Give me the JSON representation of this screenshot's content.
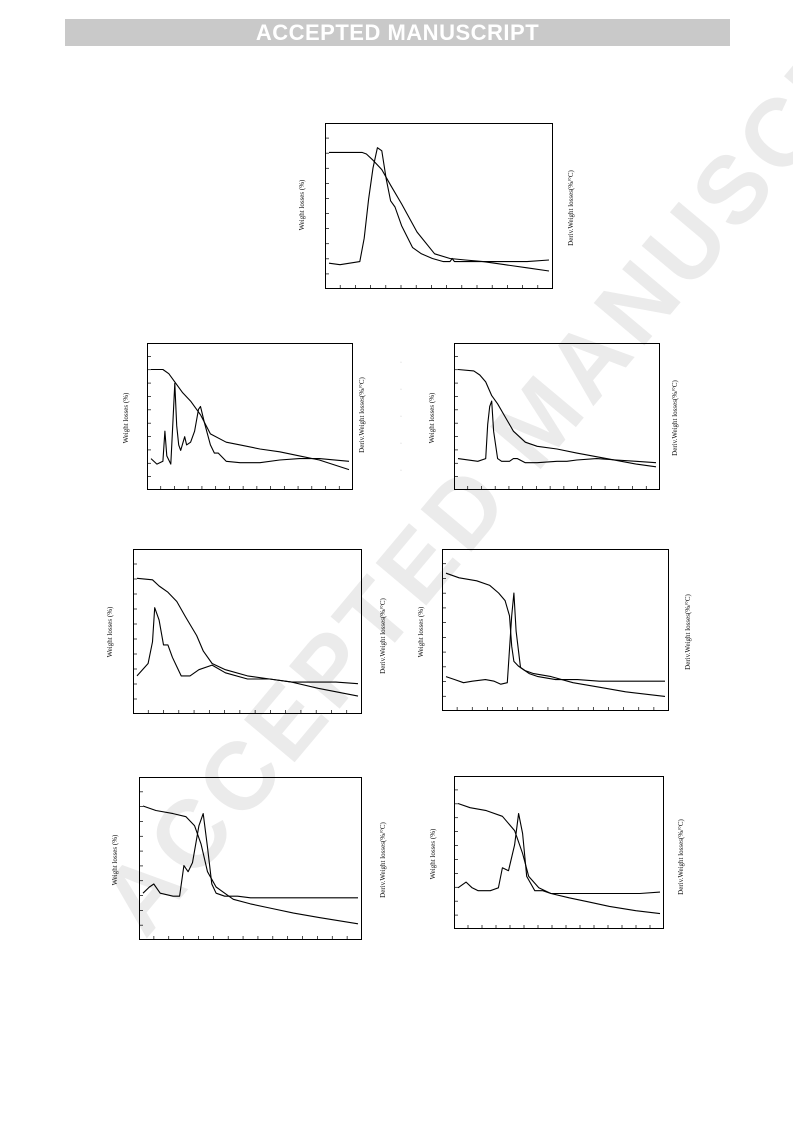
{
  "header": {
    "banner": "ACCEPTED MANUSCRIPT"
  },
  "watermark": {
    "text": "ACCEPTED MANUSCRIPT"
  },
  "figure": {
    "panels": [
      {
        "id": "p1",
        "left_label": "Weight losses (%)",
        "right_label": "Deriv.Weight losses(%/°C)",
        "chart_data": {
          "type": "line",
          "series": [
            {
              "role": "weight",
              "x": [
                0,
                0.15,
                0.17,
                0.2,
                0.24,
                0.28,
                0.33,
                0.4,
                0.48,
                0.55,
                0.62,
                0.7,
                0.8,
                0.9,
                1.0
              ],
              "values": [
                0.85,
                0.85,
                0.84,
                0.8,
                0.74,
                0.64,
                0.52,
                0.34,
                0.2,
                0.17,
                0.16,
                0.15,
                0.13,
                0.11,
                0.09
              ]
            },
            {
              "role": "derivative",
              "x": [
                0,
                0.05,
                0.14,
                0.16,
                0.18,
                0.2,
                0.22,
                0.24,
                0.26,
                0.28,
                0.3,
                0.33,
                0.38,
                0.42,
                0.47,
                0.52,
                0.55,
                0.56,
                0.57,
                0.6,
                0.7,
                0.8,
                0.9,
                1.0
              ],
              "values": [
                0.14,
                0.13,
                0.15,
                0.3,
                0.55,
                0.75,
                0.88,
                0.86,
                0.68,
                0.54,
                0.5,
                0.38,
                0.24,
                0.2,
                0.17,
                0.15,
                0.15,
                0.17,
                0.15,
                0.15,
                0.15,
                0.15,
                0.15,
                0.16
              ]
            }
          ]
        }
      },
      {
        "id": "p2",
        "left_label": "Weight losses (%)",
        "right_label": "Deriv.Weight losses(%/°C)",
        "chart_data": {
          "type": "line",
          "series": [
            {
              "role": "weight",
              "x": [
                0,
                0.06,
                0.09,
                0.12,
                0.16,
                0.2,
                0.25,
                0.3,
                0.38,
                0.45,
                0.55,
                0.65,
                0.75,
                0.85,
                1.0
              ],
              "values": [
                0.85,
                0.85,
                0.82,
                0.76,
                0.68,
                0.62,
                0.52,
                0.38,
                0.32,
                0.3,
                0.27,
                0.25,
                0.22,
                0.19,
                0.12
              ]
            },
            {
              "role": "derivative",
              "x": [
                0,
                0.03,
                0.06,
                0.07,
                0.08,
                0.1,
                0.11,
                0.12,
                0.13,
                0.14,
                0.15,
                0.17,
                0.18,
                0.2,
                0.22,
                0.24,
                0.25,
                0.27,
                0.3,
                0.32,
                0.34,
                0.38,
                0.45,
                0.55,
                0.65,
                0.75,
                0.85,
                1.0
              ],
              "values": [
                0.2,
                0.16,
                0.18,
                0.4,
                0.22,
                0.16,
                0.45,
                0.75,
                0.44,
                0.3,
                0.26,
                0.36,
                0.3,
                0.32,
                0.4,
                0.56,
                0.58,
                0.46,
                0.3,
                0.24,
                0.24,
                0.18,
                0.17,
                0.17,
                0.19,
                0.2,
                0.2,
                0.18
              ]
            }
          ]
        }
      },
      {
        "id": "p3",
        "left_label": "Weight losses (%)",
        "right_label": "Deriv.Weight losses(%/°C)",
        "chart_data": {
          "type": "line",
          "series": [
            {
              "role": "weight",
              "x": [
                0,
                0.08,
                0.11,
                0.14,
                0.17,
                0.2,
                0.24,
                0.28,
                0.34,
                0.4,
                0.5,
                0.6,
                0.75,
                0.9,
                1.0
              ],
              "values": [
                0.85,
                0.84,
                0.81,
                0.76,
                0.66,
                0.6,
                0.5,
                0.4,
                0.32,
                0.29,
                0.27,
                0.24,
                0.2,
                0.16,
                0.14
              ]
            },
            {
              "role": "derivative",
              "x": [
                0,
                0.1,
                0.14,
                0.15,
                0.16,
                0.17,
                0.18,
                0.2,
                0.22,
                0.24,
                0.26,
                0.28,
                0.3,
                0.34,
                0.4,
                0.5,
                0.55,
                0.6,
                0.7,
                0.8,
                0.9,
                1.0
              ],
              "values": [
                0.2,
                0.18,
                0.2,
                0.45,
                0.58,
                0.62,
                0.4,
                0.2,
                0.18,
                0.18,
                0.18,
                0.2,
                0.2,
                0.17,
                0.17,
                0.18,
                0.18,
                0.19,
                0.2,
                0.19,
                0.18,
                0.17
              ]
            }
          ]
        }
      },
      {
        "id": "p4",
        "left_label": "Weight losses (%)",
        "right_label": "Deriv.Weight losses(%/°C)",
        "chart_data": {
          "type": "line",
          "series": [
            {
              "role": "weight",
              "x": [
                0,
                0.07,
                0.1,
                0.14,
                0.18,
                0.22,
                0.27,
                0.3,
                0.34,
                0.4,
                0.5,
                0.6,
                0.7,
                0.82,
                1.0
              ],
              "values": [
                0.85,
                0.84,
                0.8,
                0.76,
                0.7,
                0.6,
                0.48,
                0.38,
                0.3,
                0.26,
                0.22,
                0.2,
                0.18,
                0.14,
                0.09
              ]
            },
            {
              "role": "derivative",
              "x": [
                0,
                0.05,
                0.07,
                0.08,
                0.1,
                0.12,
                0.14,
                0.16,
                0.18,
                0.2,
                0.24,
                0.28,
                0.34,
                0.4,
                0.5,
                0.6,
                0.7,
                0.8,
                0.9,
                1.0
              ],
              "values": [
                0.22,
                0.3,
                0.44,
                0.66,
                0.58,
                0.42,
                0.42,
                0.34,
                0.28,
                0.22,
                0.22,
                0.26,
                0.29,
                0.24,
                0.2,
                0.2,
                0.18,
                0.18,
                0.18,
                0.17
              ]
            }
          ]
        }
      },
      {
        "id": "p5",
        "left_label": "Weight losses (%)",
        "right_label": "Deriv.Weight losses(%/°C)",
        "chart_data": {
          "type": "line",
          "series": [
            {
              "role": "weight",
              "x": [
                0,
                0.06,
                0.14,
                0.2,
                0.24,
                0.27,
                0.29,
                0.3,
                0.31,
                0.33,
                0.36,
                0.4,
                0.48,
                0.58,
                0.7,
                0.82,
                1.0
              ],
              "values": [
                0.88,
                0.85,
                0.83,
                0.8,
                0.75,
                0.7,
                0.6,
                0.4,
                0.3,
                0.27,
                0.24,
                0.22,
                0.2,
                0.16,
                0.13,
                0.1,
                0.07
              ]
            },
            {
              "role": "derivative",
              "x": [
                0,
                0.04,
                0.08,
                0.12,
                0.18,
                0.22,
                0.25,
                0.28,
                0.3,
                0.31,
                0.32,
                0.34,
                0.38,
                0.42,
                0.5,
                0.6,
                0.7,
                0.8,
                0.9,
                1.0
              ],
              "values": [
                0.2,
                0.18,
                0.16,
                0.17,
                0.18,
                0.17,
                0.15,
                0.16,
                0.6,
                0.75,
                0.5,
                0.26,
                0.22,
                0.2,
                0.18,
                0.18,
                0.17,
                0.17,
                0.17,
                0.17
              ]
            }
          ]
        }
      },
      {
        "id": "p6",
        "left_label": "Weight losses (%)",
        "right_label": "Deriv.Weight losses(%/°C)",
        "chart_data": {
          "type": "line",
          "series": [
            {
              "role": "weight",
              "x": [
                0,
                0.06,
                0.14,
                0.2,
                0.24,
                0.27,
                0.3,
                0.34,
                0.38,
                0.42,
                0.5,
                0.6,
                0.7,
                0.82,
                1.0
              ],
              "values": [
                0.85,
                0.82,
                0.8,
                0.78,
                0.72,
                0.6,
                0.42,
                0.32,
                0.28,
                0.24,
                0.21,
                0.18,
                0.15,
                0.12,
                0.08
              ]
            },
            {
              "role": "derivative",
              "x": [
                0,
                0.03,
                0.05,
                0.08,
                0.14,
                0.17,
                0.19,
                0.21,
                0.23,
                0.26,
                0.28,
                0.3,
                0.32,
                0.34,
                0.38,
                0.44,
                0.5,
                0.6,
                0.7,
                0.8,
                0.9,
                1.0
              ],
              "values": [
                0.28,
                0.32,
                0.34,
                0.28,
                0.26,
                0.26,
                0.46,
                0.42,
                0.48,
                0.72,
                0.8,
                0.58,
                0.34,
                0.28,
                0.26,
                0.26,
                0.25,
                0.25,
                0.25,
                0.25,
                0.25,
                0.25
              ]
            }
          ]
        }
      }
    ]
  }
}
